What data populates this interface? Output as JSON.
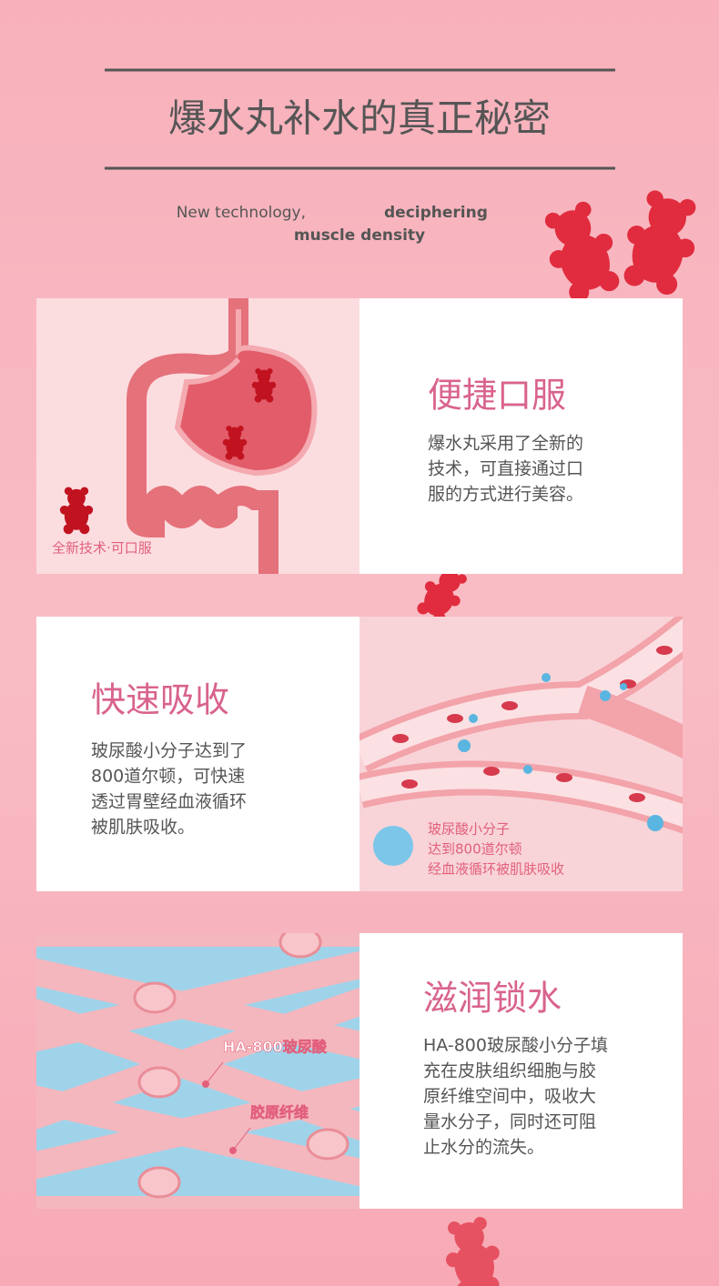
{
  "header": {
    "title": "爆水丸补水的真正秘密",
    "subtitle": [
      "New technology,",
      "deciphering",
      "muscle density"
    ]
  },
  "sections": [
    {
      "title": "便捷口服",
      "body": [
        "爆水丸采用了全新的",
        "技术，可直接通过口",
        "服的方式进行美容。"
      ],
      "captions": [
        "全新技术·可口服"
      ]
    },
    {
      "title": "快速吸收",
      "body": [
        "玻尿酸小分子达到了",
        "800道尔顿，可快速",
        "透过胃壁经血液循环",
        "被肌肤吸收。"
      ],
      "captions": [
        "玻尿酸小分子",
        "达到800道尔顿",
        "经血液循环被肌肤吸收"
      ]
    },
    {
      "title": "滋润锁水",
      "body": [
        "HA-800玻尿酸小分子填",
        "充在皮肤组织细胞与胶",
        "原纤维空间中，吸收大",
        "量水分子，同时还可阻",
        "止水分的流失。"
      ],
      "captions": [
        "HA-800玻尿酸",
        "胶原纤维"
      ]
    }
  ]
}
